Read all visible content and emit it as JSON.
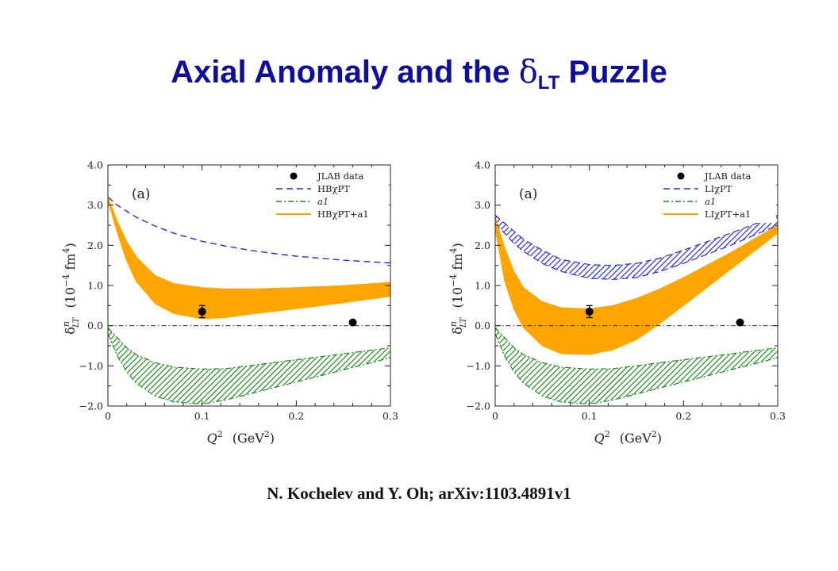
{
  "slide": {
    "title_main": "Axial Anomaly and the ",
    "title_symbol": "δ",
    "title_sub": "LT",
    "title_tail": " Puzzle",
    "citation": "N. Kochelev and Y. Oh; arXiv:1103.4891v1"
  },
  "colors": {
    "title": "#0d0d9e",
    "orange": "#ffa500",
    "blue": "#2a2ad8",
    "green": "#1e8a1e",
    "data": "#000000"
  },
  "chart_data": [
    {
      "type": "line",
      "panel_label": "(a)",
      "xlabel_main": "Q",
      "xlabel_sup": "2",
      "xlabel_unit": "(GeV",
      "xlabel_unit_sup": "2",
      "xlabel_close": ")",
      "ylabel_sym": "δ",
      "ylabel_sup": "n",
      "ylabel_sub": "LT",
      "ylabel_unit_a": "(10",
      "ylabel_unit_sup1": "−4",
      "ylabel_unit_b": " fm",
      "ylabel_unit_sup2": "4",
      "ylabel_unit_c": ")",
      "xlim": [
        0,
        0.3
      ],
      "ylim": [
        -2.0,
        4.0
      ],
      "x_ticks": [
        "0",
        "0.1",
        "0.2",
        "0.3"
      ],
      "y_ticks": [
        "−2.0",
        "−1.0",
        "0.0",
        "1.0",
        "2.0",
        "3.0",
        "4.0"
      ],
      "legend": [
        "JLAB data",
        "HBχPT",
        "a1",
        "HBχPT+a1"
      ],
      "x": [
        0,
        0.01,
        0.02,
        0.03,
        0.05,
        0.07,
        0.1,
        0.125,
        0.15,
        0.175,
        0.2,
        0.25,
        0.3
      ],
      "series": [
        {
          "name": "HBχPT",
          "style": "dashed",
          "values": [
            3.2,
            3.0,
            2.85,
            2.7,
            2.48,
            2.3,
            2.1,
            1.98,
            1.88,
            1.8,
            1.73,
            1.63,
            1.56
          ]
        },
        {
          "name": "a1",
          "style": "band",
          "lower": [
            -0.2,
            -0.75,
            -1.15,
            -1.43,
            -1.75,
            -1.9,
            -1.95,
            -1.85,
            -1.7,
            -1.55,
            -1.4,
            -1.1,
            -0.8
          ],
          "upper": [
            -0.05,
            -0.3,
            -0.55,
            -0.72,
            -0.92,
            -1.03,
            -1.08,
            -1.07,
            -1.0,
            -0.92,
            -0.85,
            -0.7,
            -0.55
          ]
        },
        {
          "name": "HBχPT+a1",
          "style": "band",
          "lower": [
            3.1,
            2.3,
            1.6,
            1.1,
            0.55,
            0.3,
            0.17,
            0.2,
            0.28,
            0.35,
            0.42,
            0.57,
            0.73
          ],
          "upper": [
            3.2,
            2.6,
            2.1,
            1.72,
            1.25,
            1.05,
            0.95,
            0.92,
            0.92,
            0.93,
            0.95,
            1.0,
            1.08
          ]
        }
      ],
      "points": [
        {
          "x": 0.1,
          "y": 0.35,
          "err": 0.15
        },
        {
          "x": 0.26,
          "y": 0.08,
          "err": 0
        }
      ]
    },
    {
      "type": "line",
      "panel_label": "(a)",
      "xlabel_main": "Q",
      "xlabel_sup": "2",
      "xlabel_unit": "(GeV",
      "xlabel_unit_sup": "2",
      "xlabel_close": ")",
      "ylabel_sym": "δ",
      "ylabel_sup": "n",
      "ylabel_sub": "LT",
      "ylabel_unit_a": "(10",
      "ylabel_unit_sup1": "−4",
      "ylabel_unit_b": " fm",
      "ylabel_unit_sup2": "4",
      "ylabel_unit_c": ")",
      "xlim": [
        0,
        0.3
      ],
      "ylim": [
        -2.0,
        4.0
      ],
      "x_ticks": [
        "0",
        "0.1",
        "0.2",
        "0.3"
      ],
      "y_ticks": [
        "−2.0",
        "−1.0",
        "0.0",
        "1.0",
        "2.0",
        "3.0",
        "4.0"
      ],
      "legend": [
        "JLAB data",
        "LIχPT",
        "a1",
        "LIχPT+a1"
      ],
      "x": [
        0,
        0.01,
        0.02,
        0.03,
        0.05,
        0.07,
        0.1,
        0.125,
        0.15,
        0.175,
        0.2,
        0.25,
        0.3
      ],
      "series": [
        {
          "name": "LIχPT",
          "style": "band",
          "lower": [
            2.55,
            2.3,
            2.05,
            1.85,
            1.55,
            1.35,
            1.18,
            1.15,
            1.2,
            1.35,
            1.55,
            2.0,
            2.5
          ],
          "upper": [
            2.75,
            2.55,
            2.35,
            2.15,
            1.88,
            1.65,
            1.52,
            1.5,
            1.55,
            1.68,
            1.88,
            2.3,
            2.75
          ]
        },
        {
          "name": "a1",
          "style": "band",
          "lower": [
            -0.2,
            -0.75,
            -1.15,
            -1.43,
            -1.75,
            -1.9,
            -1.95,
            -1.85,
            -1.7,
            -1.55,
            -1.4,
            -1.1,
            -0.8
          ],
          "upper": [
            -0.05,
            -0.3,
            -0.55,
            -0.72,
            -0.92,
            -1.03,
            -1.08,
            -1.07,
            -1.0,
            -0.92,
            -0.85,
            -0.7,
            -0.55
          ]
        },
        {
          "name": "LIχPT+a1",
          "style": "band",
          "lower": [
            2.4,
            1.1,
            0.4,
            -0.05,
            -0.5,
            -0.7,
            -0.72,
            -0.6,
            -0.35,
            0.05,
            0.5,
            1.4,
            2.3
          ],
          "upper": [
            2.7,
            1.95,
            1.35,
            0.95,
            0.6,
            0.45,
            0.42,
            0.5,
            0.68,
            0.92,
            1.2,
            1.82,
            2.5
          ]
        }
      ],
      "points": [
        {
          "x": 0.1,
          "y": 0.35,
          "err": 0.15
        },
        {
          "x": 0.26,
          "y": 0.08,
          "err": 0
        }
      ]
    }
  ]
}
